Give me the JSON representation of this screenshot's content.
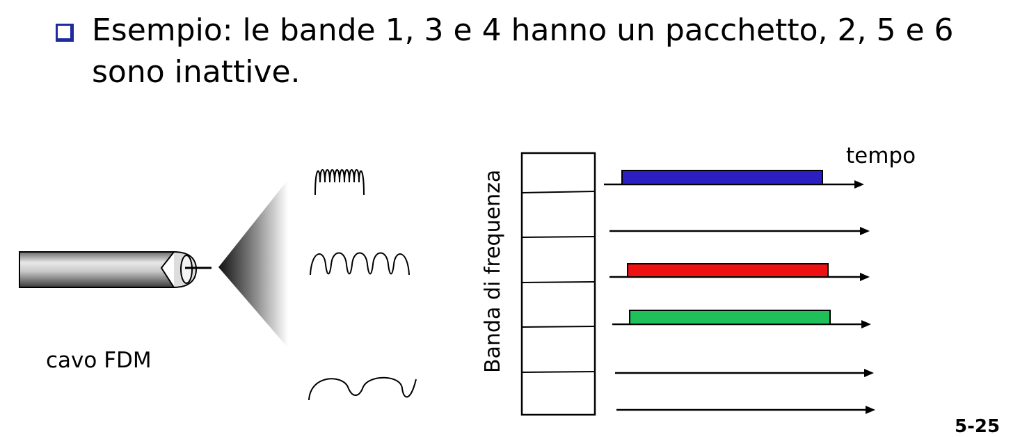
{
  "slide": {
    "bullet_text": "Esempio: le bande 1, 3 e 4 hanno un pacchetto, 2, 5 e 6\nsono inattive.",
    "page_number": "5-25"
  },
  "diagram": {
    "cable_label": "cavo FDM",
    "frequency_axis_label": "Banda di frequenza",
    "time_axis_label": "tempo",
    "bands": [
      {
        "band": 1,
        "has_packet": true,
        "color": "#2b1fc2"
      },
      {
        "band": 2,
        "has_packet": false
      },
      {
        "band": 3,
        "has_packet": true,
        "color": "#ee1111"
      },
      {
        "band": 4,
        "has_packet": true,
        "color": "#1fc05a"
      },
      {
        "band": 5,
        "has_packet": false
      },
      {
        "band": 6,
        "has_packet": false
      }
    ],
    "signals": [
      "high-frequency-wave",
      "medium-frequency-wave",
      "low-frequency-wave"
    ]
  },
  "colors": {
    "bullet": "#1e2b9c",
    "line": "#000000",
    "background": "#ffffff"
  }
}
